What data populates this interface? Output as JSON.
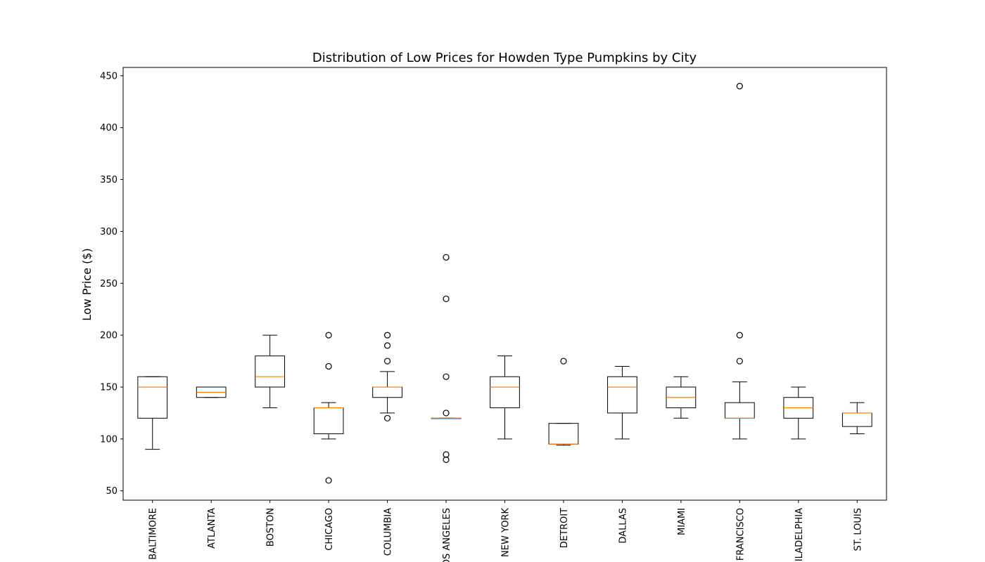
{
  "chart_data": {
    "type": "boxplot",
    "title": "Distribution of Low Prices for Howden Type Pumpkins by City",
    "xlabel": "",
    "ylabel": "Low Price ($)",
    "ylim": [
      41,
      458
    ],
    "yticks": [
      50,
      100,
      150,
      200,
      250,
      300,
      350,
      400,
      450
    ],
    "grid": false,
    "categories": [
      "BALTIMORE",
      "ATLANTA",
      "BOSTON",
      "CHICAGO",
      "COLUMBIA",
      "LOS ANGELES",
      "NEW YORK",
      "DETROIT",
      "DALLAS",
      "MIAMI",
      "SAN FRANCISCO",
      "PHILADELPHIA",
      "ST. LOUIS"
    ],
    "boxes": [
      {
        "whislo": 90,
        "q1": 120,
        "med": 150,
        "q3": 160,
        "whishi": 160,
        "fliers": []
      },
      {
        "whislo": 140,
        "q1": 140,
        "med": 145,
        "q3": 150,
        "whishi": 150,
        "fliers": []
      },
      {
        "whislo": 130,
        "q1": 150,
        "med": 160,
        "q3": 180,
        "whishi": 200,
        "fliers": []
      },
      {
        "whislo": 100,
        "q1": 105,
        "med": 130,
        "q3": 130,
        "whishi": 135,
        "fliers": [
          200,
          170,
          60
        ]
      },
      {
        "whislo": 125,
        "q1": 140,
        "med": 150,
        "q3": 150,
        "whishi": 165,
        "fliers": [
          200,
          190,
          175,
          120
        ]
      },
      {
        "whislo": 120,
        "q1": 120,
        "med": 120,
        "q3": 120,
        "whishi": 120,
        "fliers": [
          275,
          235,
          160,
          125,
          85,
          80
        ]
      },
      {
        "whislo": 100,
        "q1": 130,
        "med": 150,
        "q3": 160,
        "whishi": 180,
        "fliers": []
      },
      {
        "whislo": 94,
        "q1": 95,
        "med": 95,
        "q3": 115,
        "whishi": 115,
        "fliers": [
          175
        ]
      },
      {
        "whislo": 100,
        "q1": 125,
        "med": 150,
        "q3": 160,
        "whishi": 170,
        "fliers": []
      },
      {
        "whislo": 120,
        "q1": 130,
        "med": 140,
        "q3": 150,
        "whishi": 160,
        "fliers": []
      },
      {
        "whislo": 100,
        "q1": 120,
        "med": 120,
        "q3": 135,
        "whishi": 155,
        "fliers": [
          440,
          200,
          175
        ]
      },
      {
        "whislo": 100,
        "q1": 120,
        "med": 130,
        "q3": 140,
        "whishi": 150,
        "fliers": []
      },
      {
        "whislo": 105,
        "q1": 112,
        "med": 125,
        "q3": 125,
        "whishi": 135,
        "fliers": []
      }
    ],
    "colors": {
      "box": "#000000",
      "median": "#ff7f0e",
      "flier": "#000000"
    }
  }
}
